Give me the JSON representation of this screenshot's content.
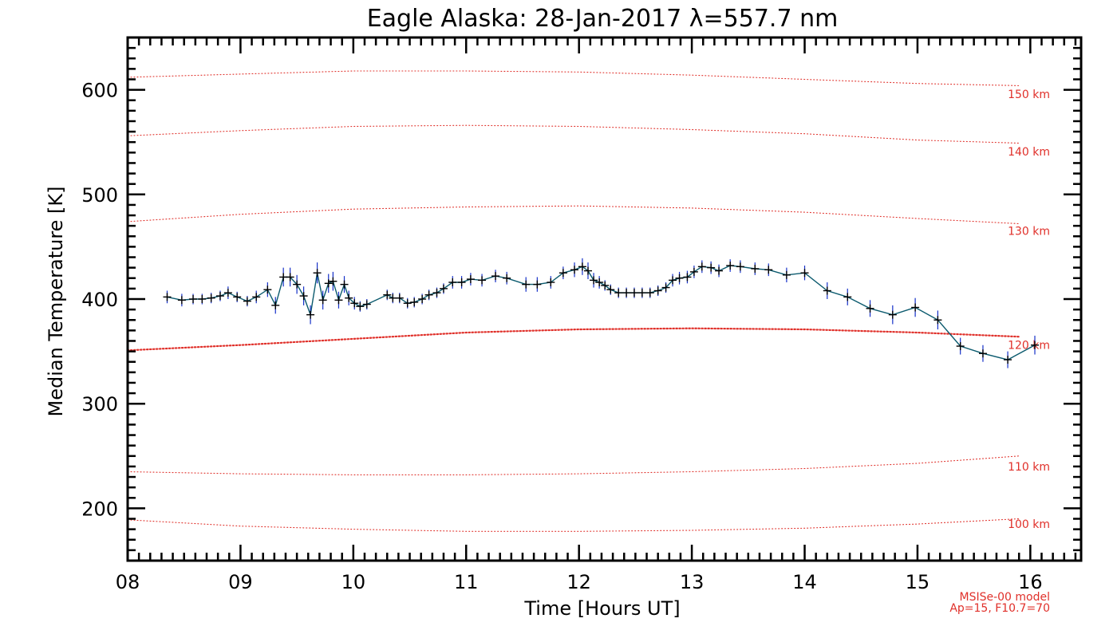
{
  "chart_data": {
    "type": "line",
    "title": "Eagle Alaska: 28-Jan-2017 λ=557.7 nm",
    "xlabel": "Time [Hours UT]",
    "ylabel": "Median Temperature [K]",
    "xlim": [
      8,
      16.45
    ],
    "ylim": [
      150,
      650
    ],
    "x_ticks": [
      8,
      9,
      10,
      11,
      12,
      13,
      14,
      15,
      16
    ],
    "x_tick_labels": [
      "08",
      "09",
      "10",
      "11",
      "12",
      "13",
      "14",
      "15",
      "16"
    ],
    "y_ticks": [
      200,
      300,
      400,
      500,
      600
    ],
    "y_tick_labels": [
      "200",
      "300",
      "400",
      "500",
      "600"
    ],
    "grid": false,
    "colors": {
      "data_line": "#0b5a6e",
      "error_bars": "#1530c8",
      "markers": "#000000",
      "model_lines": "#e0302a"
    },
    "series": [
      {
        "x": [
          8.35,
          8.48,
          8.58,
          8.66,
          8.74,
          8.82,
          8.89,
          8.97,
          9.06,
          9.14,
          9.24,
          9.31,
          9.38,
          9.44,
          9.5,
          9.56,
          9.62,
          9.68,
          9.73,
          9.78,
          9.82,
          9.87,
          9.92,
          9.96,
          10.01,
          10.06,
          10.12,
          10.3,
          10.35,
          10.41,
          10.48,
          10.54,
          10.61,
          10.67,
          10.74,
          10.8,
          10.88,
          10.96,
          11.04,
          11.14,
          11.26,
          11.36,
          11.53,
          11.63,
          11.75,
          11.86,
          11.96,
          12.03,
          12.08,
          12.13,
          12.18,
          12.23,
          12.28,
          12.35,
          12.42,
          12.49,
          12.56,
          12.63,
          12.7,
          12.77,
          12.83,
          12.89,
          12.96,
          13.02,
          13.09,
          13.17,
          13.24,
          13.34,
          13.43,
          13.56,
          13.68,
          13.84,
          14.0,
          14.2,
          14.38,
          14.58,
          14.78,
          14.98,
          15.18,
          15.38,
          15.58,
          15.8,
          16.04
        ],
        "values": [
          402,
          399,
          400,
          400,
          401,
          403,
          406,
          402,
          398,
          402,
          409,
          394,
          421,
          421,
          414,
          403,
          385,
          425,
          399,
          415,
          417,
          399,
          414,
          401,
          396,
          393,
          395,
          404,
          401,
          401,
          396,
          397,
          400,
          404,
          406,
          410,
          416,
          416,
          419,
          418,
          422,
          420,
          414,
          414,
          416,
          425,
          428,
          431,
          427,
          418,
          416,
          413,
          409,
          406,
          406,
          406,
          406,
          406,
          408,
          411,
          418,
          420,
          421,
          426,
          431,
          430,
          427,
          432,
          431,
          429,
          428,
          423,
          425,
          408,
          402,
          391,
          385,
          392,
          380,
          355,
          348,
          342,
          356
        ],
        "errors": [
          6,
          6,
          5,
          5,
          5,
          5,
          6,
          5,
          5,
          6,
          7,
          8,
          9,
          9,
          9,
          9,
          9,
          10,
          9,
          9,
          9,
          8,
          8,
          7,
          6,
          5,
          5,
          5,
          5,
          5,
          5,
          5,
          5,
          5,
          5,
          5,
          6,
          6,
          6,
          6,
          6,
          6,
          7,
          7,
          6,
          6,
          7,
          8,
          8,
          7,
          6,
          5,
          5,
          5,
          5,
          5,
          5,
          5,
          5,
          5,
          6,
          6,
          6,
          6,
          6,
          6,
          6,
          6,
          6,
          6,
          6,
          7,
          7,
          8,
          8,
          8,
          9,
          9,
          9,
          8,
          8,
          8,
          9
        ]
      }
    ],
    "model_lines": [
      {
        "label": "150 km",
        "x": [
          8,
          9,
          10,
          11,
          12,
          13,
          14,
          15,
          15.9
        ],
        "values": [
          612,
          615,
          618,
          618,
          617,
          614,
          610,
          606,
          604
        ]
      },
      {
        "label": "140 km",
        "x": [
          8,
          9,
          10,
          11,
          12,
          13,
          14,
          15,
          15.9
        ],
        "values": [
          556,
          561,
          565,
          566,
          565,
          562,
          558,
          552,
          549
        ]
      },
      {
        "label": "130 km",
        "x": [
          8,
          9,
          10,
          11,
          12,
          13,
          14,
          15,
          15.9
        ],
        "values": [
          474,
          481,
          486,
          488,
          489,
          487,
          483,
          477,
          472
        ]
      },
      {
        "label": "120 km",
        "x": [
          8,
          9,
          10,
          11,
          12,
          13,
          14,
          15,
          15.9
        ],
        "values": [
          351,
          356,
          362,
          368,
          371,
          372,
          371,
          368,
          364
        ]
      },
      {
        "label": "110 km",
        "x": [
          8,
          9,
          10,
          11,
          12,
          13,
          14,
          15,
          15.9
        ],
        "values": [
          235,
          233,
          232,
          232,
          233,
          235,
          238,
          243,
          250
        ]
      },
      {
        "label": "100 km",
        "x": [
          8,
          9,
          10,
          11,
          12,
          13,
          14,
          15,
          15.9
        ],
        "values": [
          189,
          183,
          180,
          178,
          178,
          179,
          181,
          185,
          190
        ]
      }
    ],
    "model_line_label_values": [
      596,
      541,
      465,
      356,
      240,
      185
    ],
    "annotations": [
      "MSISe-00 model",
      "Ap=15, F10.7=70"
    ]
  }
}
